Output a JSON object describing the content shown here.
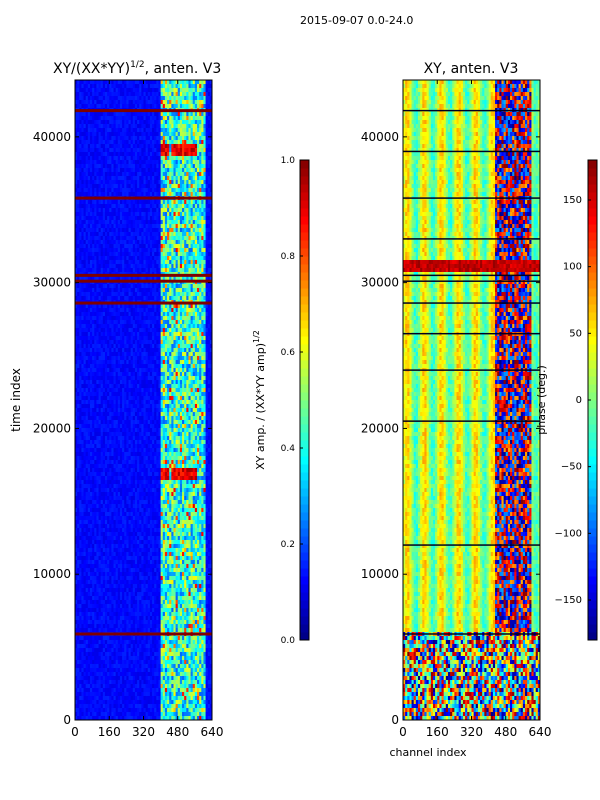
{
  "figure_title": "2015-09-07 0.0-24.0",
  "colors": {
    "jet": [
      "#00007f",
      "#0000ff",
      "#007fff",
      "#00ffff",
      "#7fff7f",
      "#ffff00",
      "#ff7f00",
      "#ff0000",
      "#7f0000"
    ],
    "frame": "#000000",
    "flag_line": "#7f0000"
  },
  "chart_data": [
    {
      "type": "heatmap",
      "title_main": "XY/(XX*YY)",
      "title_exponent": "1/2",
      "title_suffix": ", anten. V3",
      "xlabel": "",
      "ylabel": "time index",
      "xlim": [
        0,
        640
      ],
      "ylim": [
        0,
        43900
      ],
      "xticks": [
        0,
        160,
        320,
        480,
        640
      ],
      "yticks": [
        0,
        10000,
        20000,
        30000,
        40000
      ],
      "active_channels": [
        400,
        610
      ],
      "hot_blocks_time": [
        [
          38800,
          39600
        ],
        [
          16500,
          17300
        ]
      ],
      "hot_block_channels": [
        [
          405,
          440
        ],
        [
          450,
          485
        ],
        [
          492,
          525
        ],
        [
          535,
          570
        ]
      ],
      "flagged_rows_time": [
        5900,
        28600,
        30100,
        30500,
        35800,
        41800
      ],
      "colorbar": {
        "label_main": "XY amp. / (XX*YY amp)",
        "label_exponent": "1/2",
        "range": [
          0.0,
          1.0
        ],
        "ticks": [
          "0.0",
          "0.2",
          "0.4",
          "0.6",
          "0.8",
          "1.0"
        ]
      }
    },
    {
      "type": "heatmap",
      "title": "XY, anten. V3",
      "xlabel": "channel index",
      "ylabel": "",
      "xlim": [
        0,
        640
      ],
      "ylim": [
        0,
        43900
      ],
      "xticks": [
        0,
        160,
        320,
        480,
        640
      ],
      "yticks": [
        0,
        10000,
        20000,
        30000,
        40000
      ],
      "red_band_time": [
        30600,
        31600
      ],
      "noisy_low_section_time": [
        0,
        6000
      ],
      "colorbar": {
        "label": "phase (deg.)",
        "range": [
          -180,
          180
        ],
        "ticks": [
          "150",
          "100",
          "50",
          "0",
          "−50",
          "−100",
          "−150"
        ]
      }
    }
  ]
}
